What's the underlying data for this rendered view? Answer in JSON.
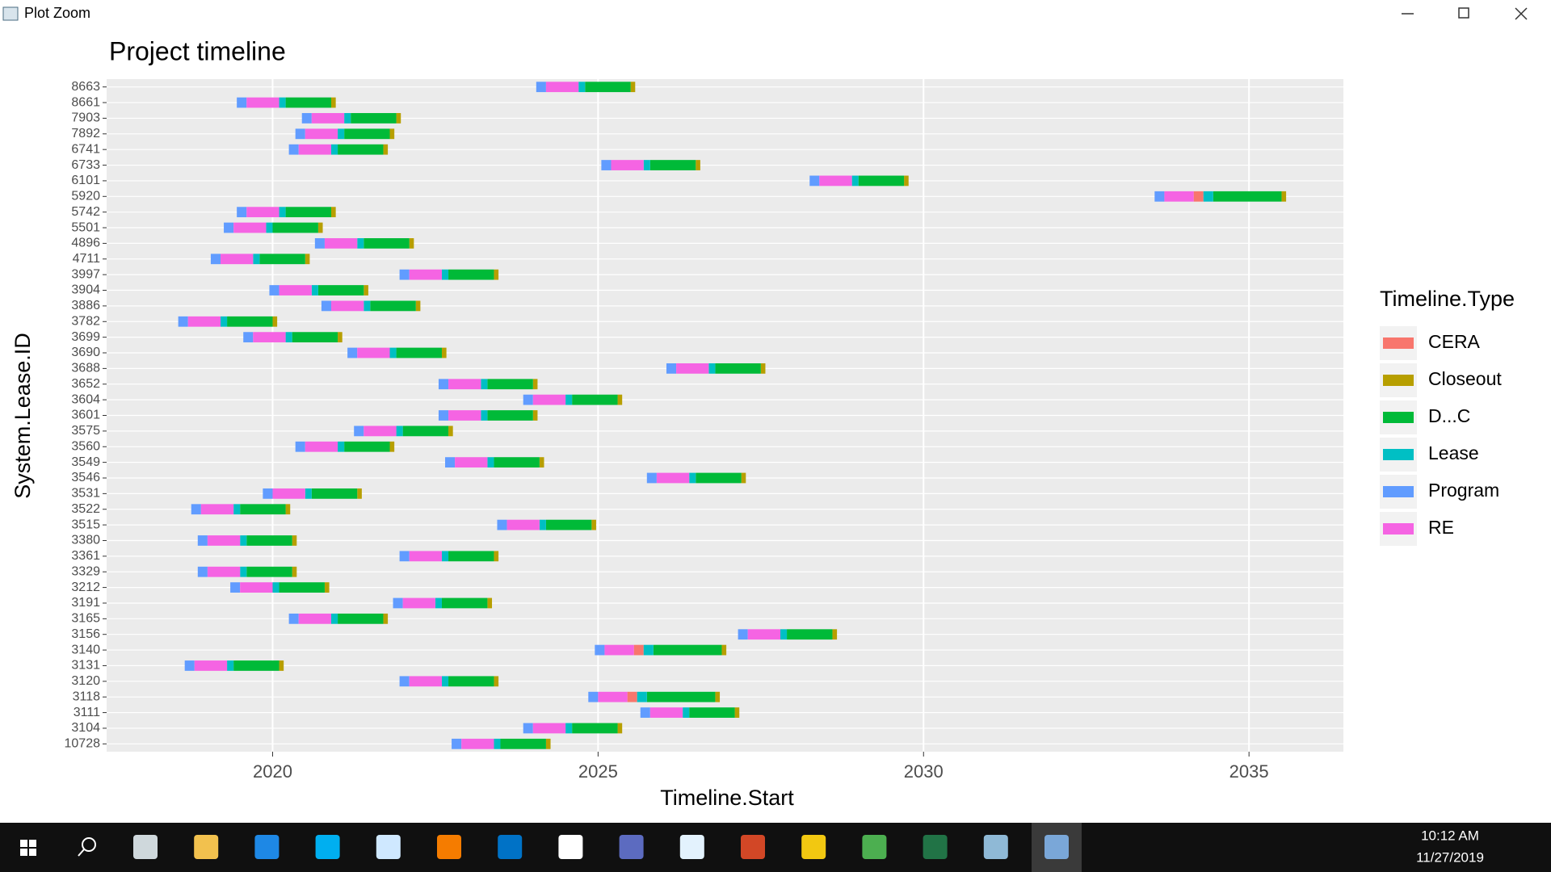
{
  "window": {
    "title": "Plot Zoom"
  },
  "chart_data": {
    "type": "gantt",
    "title": "Project timeline",
    "x_label": "Timeline.Start",
    "y_label": "System.Lease.ID",
    "legend_title": "Timeline.Type",
    "legend": "right",
    "grid": true,
    "xlim": [
      2017.45,
      2036.45
    ],
    "xticks": [
      2020,
      2025,
      2030,
      2035
    ],
    "categories": [
      "8663",
      "8661",
      "7903",
      "7892",
      "6741",
      "6733",
      "6101",
      "5920",
      "5742",
      "5501",
      "4896",
      "4711",
      "3997",
      "3904",
      "3886",
      "3782",
      "3699",
      "3690",
      "3688",
      "3652",
      "3604",
      "3601",
      "3575",
      "3560",
      "3549",
      "3546",
      "3531",
      "3522",
      "3515",
      "3380",
      "3361",
      "3329",
      "3212",
      "3191",
      "3165",
      "3156",
      "3140",
      "3131",
      "3120",
      "3118",
      "3111",
      "3104",
      "10728"
    ],
    "series": [
      {
        "name": "CERA",
        "color": "#F8766D",
        "values": [
          null,
          null,
          null,
          null,
          null,
          null,
          null,
          [
            2034.15,
            2034.3
          ],
          null,
          null,
          null,
          null,
          null,
          null,
          null,
          null,
          null,
          null,
          null,
          null,
          null,
          null,
          null,
          null,
          null,
          null,
          null,
          null,
          null,
          null,
          null,
          null,
          null,
          null,
          null,
          null,
          [
            2025.55,
            2025.7
          ],
          null,
          null,
          [
            2025.45,
            2025.6
          ],
          null,
          null,
          null
        ]
      },
      {
        "name": "Closeout",
        "color": "#B79F00",
        "values": [
          [
            2025.5,
            2025.57
          ],
          [
            2020.9,
            2020.97
          ],
          [
            2021.9,
            2021.97
          ],
          [
            2021.8,
            2021.87
          ],
          [
            2021.7,
            2021.77
          ],
          [
            2026.5,
            2026.57
          ],
          [
            2029.7,
            2029.77
          ],
          [
            2035.5,
            2035.57
          ],
          [
            2020.9,
            2020.97
          ],
          [
            2020.7,
            2020.77
          ],
          [
            2022.1,
            2022.17
          ],
          [
            2020.5,
            2020.57
          ],
          [
            2023.4,
            2023.47
          ],
          [
            2021.4,
            2021.47
          ],
          [
            2022.2,
            2022.27
          ],
          [
            2020,
            2020.07
          ],
          [
            2021,
            2021.07
          ],
          [
            2022.6,
            2022.67
          ],
          [
            2027.5,
            2027.57
          ],
          [
            2024,
            2024.07
          ],
          [
            2025.3,
            2025.37
          ],
          [
            2024,
            2024.07
          ],
          [
            2022.7,
            2022.77
          ],
          [
            2021.8,
            2021.87
          ],
          [
            2024.1,
            2024.17
          ],
          [
            2027.2,
            2027.27
          ],
          [
            2021.3,
            2021.37
          ],
          [
            2020.2,
            2020.27
          ],
          [
            2024.9,
            2024.97
          ],
          [
            2020.3,
            2020.37
          ],
          [
            2023.4,
            2023.47
          ],
          [
            2020.3,
            2020.37
          ],
          [
            2020.8,
            2020.87
          ],
          [
            2023.3,
            2023.37
          ],
          [
            2021.7,
            2021.77
          ],
          [
            2028.6,
            2028.67
          ],
          [
            2026.9,
            2026.97
          ],
          [
            2020.1,
            2020.17
          ],
          [
            2023.4,
            2023.47
          ],
          [
            2026.8,
            2026.87
          ],
          [
            2027.1,
            2027.17
          ],
          [
            2025.3,
            2025.37
          ],
          [
            2024.2,
            2024.27
          ]
        ]
      },
      {
        "name": "D...C",
        "color": "#00BA38",
        "values": [
          [
            2024.8,
            2025.5
          ],
          [
            2020.2,
            2020.9
          ],
          [
            2021.2,
            2021.9
          ],
          [
            2021.1,
            2021.8
          ],
          [
            2021,
            2021.7
          ],
          [
            2025.8,
            2026.5
          ],
          [
            2029,
            2029.7
          ],
          [
            2034.45,
            2035.5
          ],
          [
            2020.2,
            2020.9
          ],
          [
            2020,
            2020.7
          ],
          [
            2021.4,
            2022.1
          ],
          [
            2019.8,
            2020.5
          ],
          [
            2022.7,
            2023.4
          ],
          [
            2020.7,
            2021.4
          ],
          [
            2021.5,
            2022.2
          ],
          [
            2019.3,
            2020
          ],
          [
            2020.3,
            2021
          ],
          [
            2021.9,
            2022.6
          ],
          [
            2026.8,
            2027.5
          ],
          [
            2023.3,
            2024
          ],
          [
            2024.6,
            2025.3
          ],
          [
            2023.3,
            2024
          ],
          [
            2022,
            2022.7
          ],
          [
            2021.1,
            2021.8
          ],
          [
            2023.4,
            2024.1
          ],
          [
            2026.5,
            2027.2
          ],
          [
            2020.6,
            2021.3
          ],
          [
            2019.5,
            2020.2
          ],
          [
            2024.2,
            2024.9
          ],
          [
            2019.6,
            2020.3
          ],
          [
            2022.7,
            2023.4
          ],
          [
            2019.6,
            2020.3
          ],
          [
            2020.1,
            2020.8
          ],
          [
            2022.6,
            2023.3
          ],
          [
            2021,
            2021.7
          ],
          [
            2027.9,
            2028.6
          ],
          [
            2025.85,
            2026.9
          ],
          [
            2019.4,
            2020.1
          ],
          [
            2022.7,
            2023.4
          ],
          [
            2025.75,
            2026.8
          ],
          [
            2026.4,
            2027.1
          ],
          [
            2024.6,
            2025.3
          ],
          [
            2023.5,
            2024.2
          ]
        ]
      },
      {
        "name": "Lease",
        "color": "#00BFC4",
        "values": [
          [
            2024.7,
            2024.8
          ],
          [
            2020.1,
            2020.2
          ],
          [
            2021.1,
            2021.2
          ],
          [
            2021,
            2021.1
          ],
          [
            2020.9,
            2021
          ],
          [
            2025.7,
            2025.8
          ],
          [
            2028.9,
            2029
          ],
          [
            2034.3,
            2034.45
          ],
          [
            2020.1,
            2020.2
          ],
          [
            2019.9,
            2020
          ],
          [
            2021.3,
            2021.4
          ],
          [
            2019.7,
            2019.8
          ],
          [
            2022.6,
            2022.7
          ],
          [
            2020.6,
            2020.7
          ],
          [
            2021.4,
            2021.5
          ],
          [
            2019.2,
            2019.3
          ],
          [
            2020.2,
            2020.3
          ],
          [
            2021.8,
            2021.9
          ],
          [
            2026.7,
            2026.8
          ],
          [
            2023.2,
            2023.3
          ],
          [
            2024.5,
            2024.6
          ],
          [
            2023.2,
            2023.3
          ],
          [
            2021.9,
            2022
          ],
          [
            2021,
            2021.1
          ],
          [
            2023.3,
            2023.4
          ],
          [
            2026.4,
            2026.5
          ],
          [
            2020.5,
            2020.6
          ],
          [
            2019.4,
            2019.5
          ],
          [
            2024.1,
            2024.2
          ],
          [
            2019.5,
            2019.6
          ],
          [
            2022.6,
            2022.7
          ],
          [
            2019.5,
            2019.6
          ],
          [
            2020,
            2020.1
          ],
          [
            2022.5,
            2022.6
          ],
          [
            2020.9,
            2021
          ],
          [
            2027.8,
            2027.9
          ],
          [
            2025.7,
            2025.85
          ],
          [
            2019.3,
            2019.4
          ],
          [
            2022.6,
            2022.7
          ],
          [
            2025.6,
            2025.75
          ],
          [
            2026.3,
            2026.4
          ],
          [
            2024.5,
            2024.6
          ],
          [
            2023.4,
            2023.5
          ]
        ]
      },
      {
        "name": "Program",
        "color": "#619CFF",
        "values": [
          [
            2024.05,
            2024.2
          ],
          [
            2019.45,
            2019.6
          ],
          [
            2020.45,
            2020.6
          ],
          [
            2020.35,
            2020.5
          ],
          [
            2020.25,
            2020.4
          ],
          [
            2025.05,
            2025.2
          ],
          [
            2028.25,
            2028.4
          ],
          [
            2033.55,
            2033.7
          ],
          [
            2019.45,
            2019.6
          ],
          [
            2019.25,
            2019.4
          ],
          [
            2020.65,
            2020.8
          ],
          [
            2019.05,
            2019.2
          ],
          [
            2021.95,
            2022.1
          ],
          [
            2019.95,
            2020.1
          ],
          [
            2020.75,
            2020.9
          ],
          [
            2018.55,
            2018.7
          ],
          [
            2019.55,
            2019.7
          ],
          [
            2021.15,
            2021.3
          ],
          [
            2026.05,
            2026.2
          ],
          [
            2022.55,
            2022.7
          ],
          [
            2023.85,
            2024
          ],
          [
            2022.55,
            2022.7
          ],
          [
            2021.25,
            2021.4
          ],
          [
            2020.35,
            2020.5
          ],
          [
            2022.65,
            2022.8
          ],
          [
            2025.75,
            2025.9
          ],
          [
            2019.85,
            2020
          ],
          [
            2018.75,
            2018.9
          ],
          [
            2023.45,
            2023.6
          ],
          [
            2018.85,
            2019
          ],
          [
            2021.95,
            2022.1
          ],
          [
            2018.85,
            2019
          ],
          [
            2019.35,
            2019.5
          ],
          [
            2021.85,
            2022
          ],
          [
            2020.25,
            2020.4
          ],
          [
            2027.15,
            2027.3
          ],
          [
            2024.95,
            2025.1
          ],
          [
            2018.65,
            2018.8
          ],
          [
            2021.95,
            2022.1
          ],
          [
            2024.85,
            2025
          ],
          [
            2025.65,
            2025.8
          ],
          [
            2023.85,
            2024
          ],
          [
            2022.75,
            2022.9
          ]
        ]
      },
      {
        "name": "RE",
        "color": "#F564E3",
        "values": [
          [
            2024.2,
            2024.7
          ],
          [
            2019.6,
            2020.1
          ],
          [
            2020.6,
            2021.1
          ],
          [
            2020.5,
            2021
          ],
          [
            2020.4,
            2020.9
          ],
          [
            2025.2,
            2025.7
          ],
          [
            2028.4,
            2028.9
          ],
          [
            2033.7,
            2034.15
          ],
          [
            2019.6,
            2020.1
          ],
          [
            2019.4,
            2019.9
          ],
          [
            2020.8,
            2021.3
          ],
          [
            2019.2,
            2019.7
          ],
          [
            2022.1,
            2022.6
          ],
          [
            2020.1,
            2020.6
          ],
          [
            2020.9,
            2021.4
          ],
          [
            2018.7,
            2019.2
          ],
          [
            2019.7,
            2020.2
          ],
          [
            2021.3,
            2021.8
          ],
          [
            2026.2,
            2026.7
          ],
          [
            2022.7,
            2023.2
          ],
          [
            2024,
            2024.5
          ],
          [
            2022.7,
            2023.2
          ],
          [
            2021.4,
            2021.9
          ],
          [
            2020.5,
            2021
          ],
          [
            2022.8,
            2023.3
          ],
          [
            2025.9,
            2026.4
          ],
          [
            2020,
            2020.5
          ],
          [
            2018.9,
            2019.4
          ],
          [
            2023.6,
            2024.1
          ],
          [
            2019,
            2019.5
          ],
          [
            2022.1,
            2022.6
          ],
          [
            2019,
            2019.5
          ],
          [
            2019.5,
            2020
          ],
          [
            2022,
            2022.5
          ],
          [
            2020.4,
            2020.9
          ],
          [
            2027.3,
            2027.8
          ],
          [
            2025.1,
            2025.55
          ],
          [
            2018.8,
            2019.3
          ],
          [
            2022.1,
            2022.6
          ],
          [
            2025,
            2025.45
          ],
          [
            2025.8,
            2026.3
          ],
          [
            2024,
            2024.5
          ],
          [
            2022.9,
            2023.4
          ]
        ]
      }
    ]
  },
  "taskbar": {
    "time": "10:12 AM",
    "date": "11/27/2019"
  }
}
